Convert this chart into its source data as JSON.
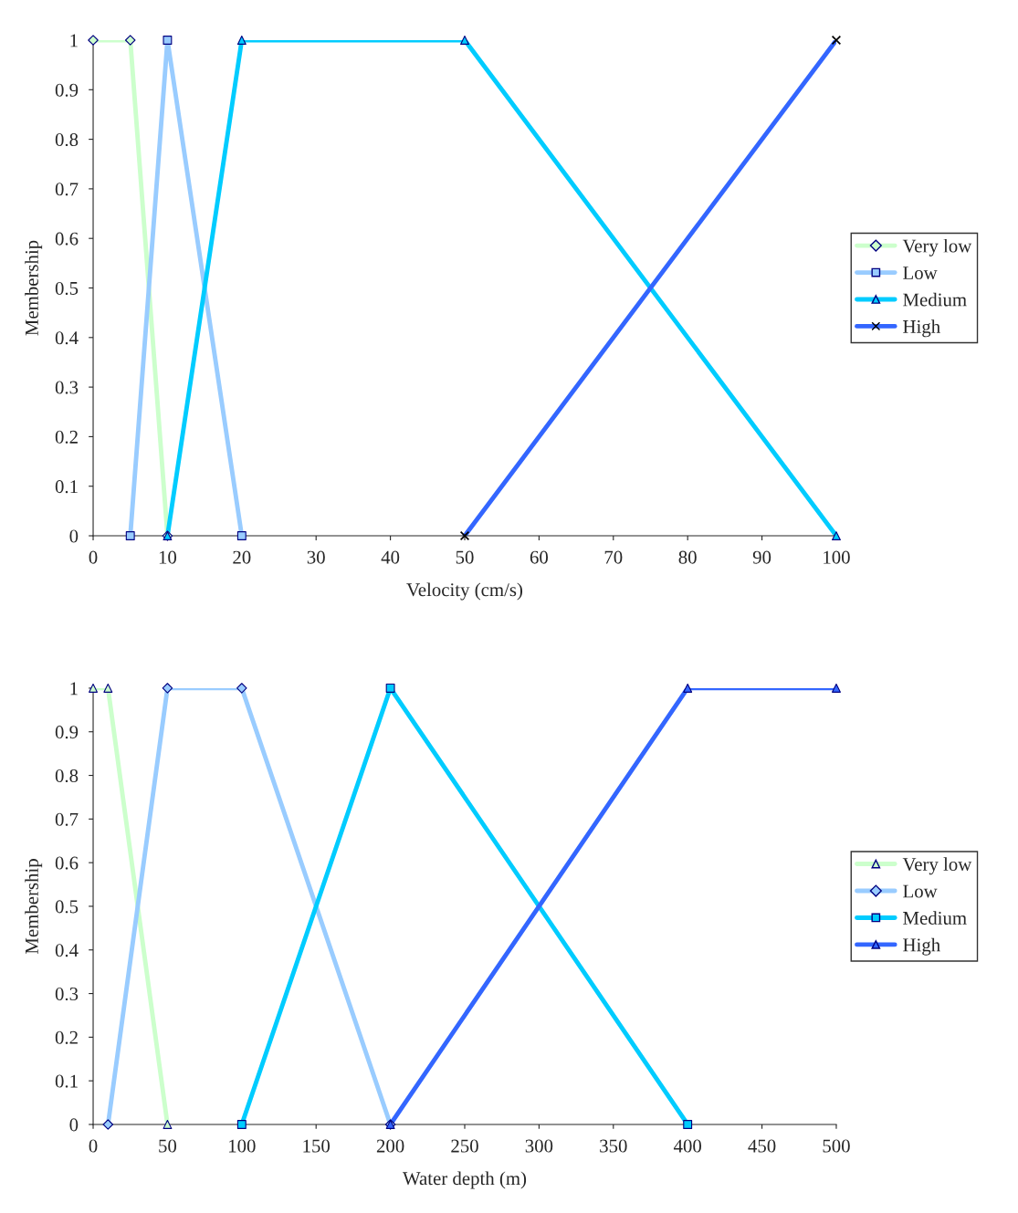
{
  "chart_data": [
    {
      "type": "line",
      "xlabel": "Velocity (cm/s)",
      "ylabel": "Membership",
      "xlim": [
        0,
        100
      ],
      "ylim": [
        0,
        1
      ],
      "xticks": [
        0,
        10,
        20,
        30,
        40,
        50,
        60,
        70,
        80,
        90,
        100
      ],
      "yticks": [
        0,
        0.1,
        0.2,
        0.3,
        0.4,
        0.5,
        0.6,
        0.7,
        0.8,
        0.9,
        1
      ],
      "grid": false,
      "legend": "right",
      "series": [
        {
          "name": "Very low",
          "color": "#ccffcc",
          "marker": "diamond",
          "x": [
            0,
            5,
            10
          ],
          "values": [
            1,
            1,
            0
          ]
        },
        {
          "name": "Low",
          "color": "#99ccff",
          "marker": "square",
          "x": [
            5,
            10,
            20
          ],
          "values": [
            0,
            1,
            0
          ]
        },
        {
          "name": "Medium",
          "color": "#00ccff",
          "marker": "triangle",
          "x": [
            10,
            20,
            50,
            100
          ],
          "values": [
            0,
            1,
            1,
            0
          ]
        },
        {
          "name": "High",
          "color": "#3366ff",
          "marker": "cross",
          "x": [
            50,
            100
          ],
          "values": [
            0,
            1
          ]
        }
      ]
    },
    {
      "type": "line",
      "xlabel": "Water depth (m)",
      "ylabel": "Membership",
      "xlim": [
        0,
        500
      ],
      "ylim": [
        0,
        1
      ],
      "xticks": [
        0,
        50,
        100,
        150,
        200,
        250,
        300,
        350,
        400,
        450,
        500
      ],
      "yticks": [
        0,
        0.1,
        0.2,
        0.3,
        0.4,
        0.5,
        0.6,
        0.7,
        0.8,
        0.9,
        1
      ],
      "grid": false,
      "legend": "right",
      "series": [
        {
          "name": "Very low",
          "color": "#ccffcc",
          "marker": "triangle",
          "x": [
            0,
            10,
            50
          ],
          "values": [
            1,
            1,
            0
          ]
        },
        {
          "name": "Low",
          "color": "#99ccff",
          "marker": "diamond",
          "x": [
            10,
            50,
            100,
            200
          ],
          "values": [
            0,
            1,
            1,
            0
          ]
        },
        {
          "name": "Medium",
          "color": "#00ccff",
          "marker": "square",
          "x": [
            100,
            200,
            400
          ],
          "values": [
            0,
            1,
            0
          ]
        },
        {
          "name": "High",
          "color": "#3366ff",
          "marker": "triangle",
          "x": [
            200,
            400,
            500
          ],
          "values": [
            0,
            1,
            1
          ]
        }
      ]
    }
  ]
}
